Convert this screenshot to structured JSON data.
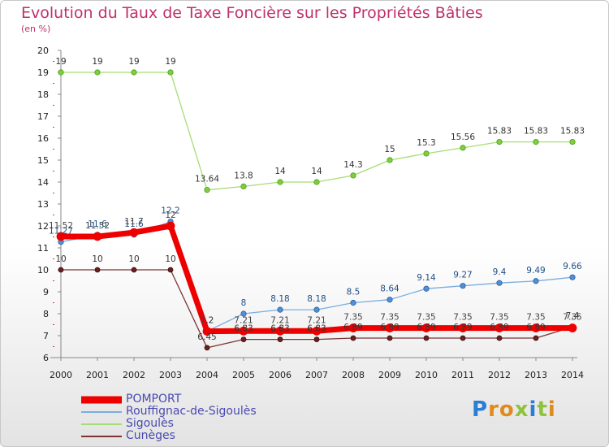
{
  "title": "Evolution du Taux de Taxe Foncière sur les Propriétés Bâties",
  "unit": "(en %)",
  "logo": "Proxiti",
  "colors": {
    "POMPORT": "#ee0000",
    "Rouffignac-de-Sigoulès": "#5b9bd5",
    "Sigoulès": "#8fd24f",
    "Cunèges": "#6b2020",
    "title": "#c0306a",
    "legend_text": "#4a4ab0"
  },
  "chart_data": {
    "type": "line",
    "title": "Evolution du Taux de Taxe Foncière sur les Propriétés Bâties",
    "ylabel": "(en %)",
    "xlabel": "",
    "x": [
      2000,
      2001,
      2002,
      2003,
      2004,
      2005,
      2006,
      2007,
      2008,
      2009,
      2010,
      2011,
      2012,
      2013,
      2014
    ],
    "ylim": [
      6,
      20
    ],
    "yticks": [
      6,
      7,
      8,
      9,
      10,
      11,
      12,
      13,
      14,
      15,
      16,
      17,
      18,
      19,
      20
    ],
    "grid": false,
    "legend": "bottom-left",
    "series": [
      {
        "name": "POMPORT",
        "values": [
          11.52,
          11.52,
          11.7,
          12,
          7.2,
          7.21,
          7.21,
          7.21,
          7.35,
          7.35,
          7.35,
          7.35,
          7.35,
          7.35,
          7.35
        ],
        "labels": [
          "11.52",
          "11.52",
          "11.7",
          "12",
          "7.2",
          "7.21",
          "7.21",
          "7.21",
          "7.35",
          "7.35",
          "7.35",
          "7.35",
          "7.35",
          "7.35",
          "7.35"
        ]
      },
      {
        "name": "Rouffignac-de-Sigoulès",
        "values": [
          11.27,
          11.6,
          11.6,
          12.2,
          7.2,
          8,
          8.18,
          8.18,
          8.5,
          8.64,
          9.14,
          9.27,
          9.4,
          9.49,
          9.66
        ],
        "labels": [
          "11.27",
          "11.6",
          "11.6",
          "12.2",
          "7.2",
          "8",
          "8.18",
          "8.18",
          "8.5",
          "8.64",
          "9.14",
          "9.27",
          "9.4",
          "9.49",
          "9.66"
        ]
      },
      {
        "name": "Sigoulès",
        "values": [
          19,
          19,
          19,
          19,
          13.64,
          13.8,
          14,
          14,
          14.3,
          15,
          15.3,
          15.56,
          15.83,
          15.83,
          15.83
        ],
        "labels": [
          "19",
          "19",
          "19",
          "19",
          "13.64",
          "13.8",
          "14",
          "14",
          "14.3",
          "15",
          "15.3",
          "15.56",
          "15.83",
          "15.83",
          "15.83"
        ]
      },
      {
        "name": "Cunèges",
        "values": [
          10,
          10,
          10,
          10,
          6.45,
          6.83,
          6.83,
          6.83,
          6.89,
          6.89,
          6.89,
          6.89,
          6.89,
          6.89,
          7.4
        ],
        "labels": [
          "10",
          "10",
          "10",
          "10",
          "6.45",
          "6.83",
          "6.83",
          "6.83",
          "6.89",
          "6.89",
          "6.89",
          "6.89",
          "6.89",
          "6.89",
          "7.4"
        ]
      }
    ]
  }
}
